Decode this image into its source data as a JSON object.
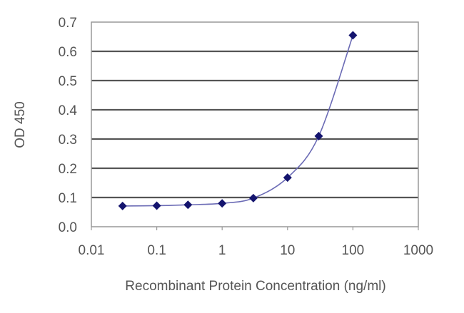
{
  "chart_data": {
    "type": "line",
    "title": "",
    "xlabel": "Recombinant Protein Concentration (ng/ml)",
    "ylabel": "OD 450",
    "xscale": "log",
    "xlim": [
      0.01,
      1000
    ],
    "ylim": [
      0,
      0.7
    ],
    "x_ticks": [
      "0.01",
      "0.1",
      "1",
      "10",
      "100",
      "1000"
    ],
    "y_ticks": [
      "0.0",
      "0.1",
      "0.2",
      "0.3",
      "0.4",
      "0.5",
      "0.6",
      "0.7"
    ],
    "grid": "horizontal",
    "series": [
      {
        "x": [
          0.03,
          0.1,
          0.3,
          1,
          3,
          10,
          30,
          100
        ],
        "y": [
          0.071,
          0.072,
          0.075,
          0.08,
          0.098,
          0.168,
          0.31,
          0.655
        ],
        "marker": "diamond",
        "color": "#14146e",
        "line_color": "#6b6bb5"
      }
    ]
  }
}
